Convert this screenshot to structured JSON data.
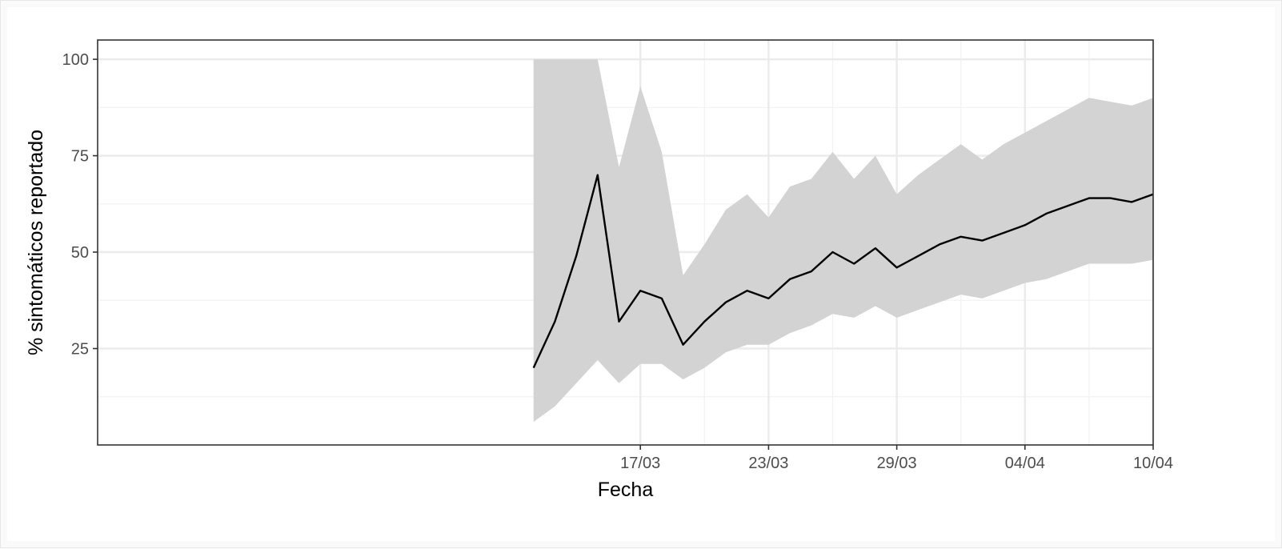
{
  "chart_data": {
    "type": "line",
    "title": "",
    "xlabel": "Fecha",
    "ylabel": "% sintomáticos reportado",
    "x_start": "2020-03-12",
    "x": [
      "12/03",
      "13/03",
      "14/03",
      "15/03",
      "16/03",
      "17/03",
      "18/03",
      "19/03",
      "20/03",
      "21/03",
      "22/03",
      "23/03",
      "24/03",
      "25/03",
      "26/03",
      "27/03",
      "28/03",
      "29/03",
      "30/03",
      "31/03",
      "01/04",
      "02/04",
      "03/04",
      "04/04",
      "05/04",
      "06/04",
      "07/04",
      "08/04",
      "09/04",
      "10/04"
    ],
    "x_ticks": [
      "17/03",
      "23/03",
      "29/03",
      "04/04",
      "10/04"
    ],
    "y_ticks": [
      25,
      50,
      75,
      100
    ],
    "ylim": [
      0,
      105
    ],
    "grid": true,
    "series": [
      {
        "values": [
          20,
          32,
          49,
          70,
          32,
          40,
          38,
          26,
          32,
          37,
          40,
          38,
          43,
          45,
          50,
          47,
          51,
          46,
          49,
          52,
          54,
          53,
          55,
          57,
          60,
          62,
          64,
          64,
          63,
          65
        ],
        "color": "#000000"
      }
    ],
    "band": {
      "lower": [
        6,
        10,
        16,
        22,
        16,
        21,
        21,
        17,
        20,
        24,
        26,
        26,
        29,
        31,
        34,
        33,
        36,
        33,
        35,
        37,
        39,
        38,
        40,
        42,
        43,
        45,
        47,
        47,
        47,
        48
      ],
      "upper": [
        100,
        100,
        100,
        100,
        72,
        93,
        76,
        44,
        52,
        61,
        65,
        59,
        67,
        69,
        76,
        69,
        75,
        65,
        70,
        74,
        78,
        74,
        78,
        81,
        84,
        87,
        90,
        89,
        88,
        90
      ],
      "color": "#d3d3d3"
    },
    "colors": {
      "panel_border": "#333333",
      "grid_major": "#ebebeb",
      "grid_minor": "#f2f2f2"
    }
  }
}
